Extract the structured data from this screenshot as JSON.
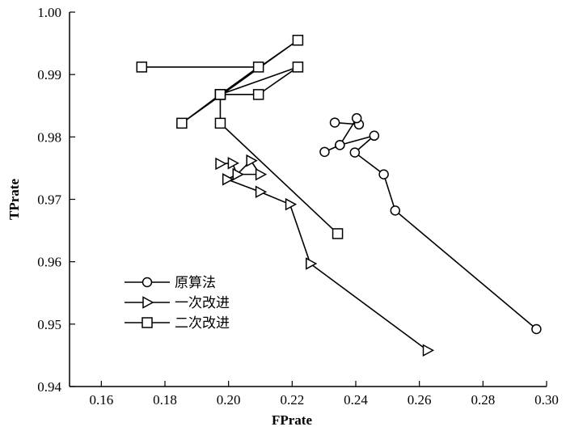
{
  "chart_data": {
    "type": "line",
    "title": "",
    "xlabel": "FPrate",
    "ylabel": "TPrate",
    "xlim": [
      0.15,
      0.3
    ],
    "ylim": [
      0.94,
      1.0
    ],
    "x_ticks": [
      0.16,
      0.18,
      0.2,
      0.22,
      0.24,
      0.26,
      0.28,
      0.3
    ],
    "x_tick_labels": [
      "0.16",
      "0.18",
      "0.20",
      "0.22",
      "0.24",
      "0.26",
      "0.28",
      "0.30"
    ],
    "y_ticks": [
      0.94,
      0.95,
      0.96,
      0.97,
      0.98,
      0.99,
      1.0
    ],
    "y_tick_labels": [
      "0.94",
      "0.95",
      "0.96",
      "0.97",
      "0.98",
      "0.99",
      "1.00"
    ],
    "grid": false,
    "legend_position": "lower-left",
    "series": [
      {
        "name": "原算法",
        "marker": "circle",
        "color": "#000000",
        "points": [
          [
            0.2334,
            0.9823
          ],
          [
            0.241,
            0.982
          ],
          [
            0.2403,
            0.983
          ],
          [
            0.235,
            0.9787
          ],
          [
            0.2302,
            0.9776
          ],
          [
            0.235,
            0.9787
          ],
          [
            0.2458,
            0.9802
          ],
          [
            0.2397,
            0.9775
          ],
          [
            0.2488,
            0.974
          ],
          [
            0.2524,
            0.9682
          ],
          [
            0.2968,
            0.9492
          ]
        ]
      },
      {
        "name": "一次改进",
        "marker": "triangle-right",
        "color": "#000000",
        "points": [
          [
            0.1973,
            0.9757
          ],
          [
            0.2012,
            0.9758
          ],
          [
            0.2027,
            0.974
          ],
          [
            0.207,
            0.9762
          ],
          [
            0.2099,
            0.974
          ],
          [
            0.2027,
            0.974
          ],
          [
            0.1995,
            0.9732
          ],
          [
            0.2099,
            0.9712
          ],
          [
            0.2193,
            0.9692
          ],
          [
            0.2257,
            0.9597
          ],
          [
            0.2625,
            0.9458
          ]
        ]
      },
      {
        "name": "二次改进",
        "marker": "square",
        "color": "#000000",
        "points": [
          [
            0.1727,
            0.9912
          ],
          [
            0.2094,
            0.9912
          ],
          [
            0.1974,
            0.9868
          ],
          [
            0.2218,
            0.9955
          ],
          [
            0.1853,
            0.9822
          ],
          [
            0.1974,
            0.9868
          ],
          [
            0.2094,
            0.9868
          ],
          [
            0.2218,
            0.9912
          ],
          [
            0.1974,
            0.9868
          ],
          [
            0.1974,
            0.9822
          ],
          [
            0.2343,
            0.9645
          ]
        ]
      }
    ]
  }
}
